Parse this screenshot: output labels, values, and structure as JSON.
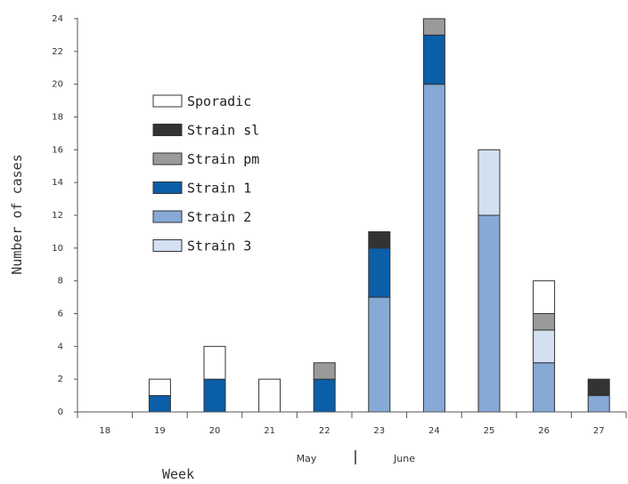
{
  "chart_data": {
    "type": "bar",
    "stacked": true,
    "xlabel": "Week",
    "ylabel": "Number of cases",
    "ylim": [
      0,
      24
    ],
    "yticks": [
      "0",
      "2",
      "4",
      "6",
      "8",
      "10",
      "12",
      "14",
      "16",
      "18",
      "20",
      "22",
      "24"
    ],
    "categories": [
      "18",
      "19",
      "20",
      "21",
      "22",
      "23",
      "24",
      "25",
      "26",
      "27"
    ],
    "months": [
      {
        "label": "May"
      },
      {
        "label": "June"
      }
    ],
    "legend_position": "upper-left",
    "series": [
      {
        "name": "Strain 2",
        "color": "#86a9d6",
        "values": [
          0,
          0,
          0,
          0,
          0,
          7,
          20,
          12,
          3,
          1
        ]
      },
      {
        "name": "Strain 1",
        "color": "#0b5ea8",
        "values": [
          0,
          1,
          2,
          0,
          2,
          3,
          3,
          0,
          0,
          0
        ]
      },
      {
        "name": "Strain 3",
        "color": "#d3e0f2",
        "values": [
          0,
          0,
          0,
          0,
          0,
          0,
          0,
          4,
          2,
          0
        ]
      },
      {
        "name": "Strain pm",
        "color": "#9a9a9a",
        "values": [
          0,
          0,
          0,
          0,
          1,
          0,
          1,
          0,
          1,
          0
        ]
      },
      {
        "name": "Strain sl",
        "color": "#333333",
        "values": [
          0,
          0,
          0,
          0,
          0,
          1,
          0,
          0,
          0,
          1
        ]
      },
      {
        "name": "Sporadic",
        "color": "#ffffff",
        "values": [
          0,
          1,
          2,
          2,
          0,
          0,
          0,
          0,
          2,
          0
        ]
      }
    ],
    "legend_order": [
      "Sporadic",
      "Strain sl",
      "Strain pm",
      "Strain 1",
      "Strain 2",
      "Strain 3"
    ]
  }
}
